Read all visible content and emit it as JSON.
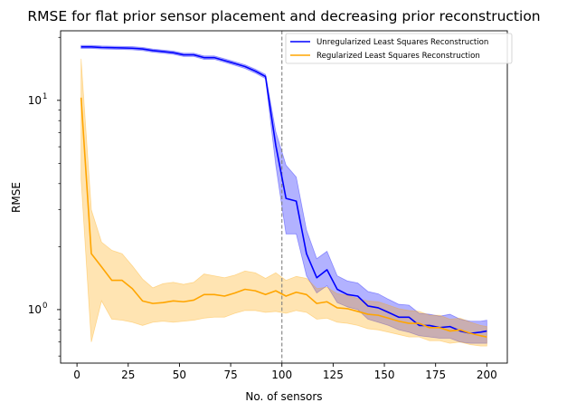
{
  "chart_data": {
    "type": "line",
    "title": "RMSE for flat prior sensor placement and decreasing prior reconstruction",
    "xlabel": "No. of sensors",
    "ylabel": "RMSE",
    "xlim": [
      -8,
      210
    ],
    "ylim": [
      0.555,
      21.5
    ],
    "yscale": "log",
    "grid": false,
    "legend_position": "top-right",
    "x_ticks": [
      0,
      25,
      50,
      75,
      100,
      125,
      150,
      175,
      200
    ],
    "y_major_ticks": [
      {
        "value": 1,
        "base": "10",
        "exp": "0"
      },
      {
        "value": 10,
        "base": "10",
        "exp": "1"
      }
    ],
    "y_minor_ticks": [
      0.6,
      0.7,
      0.8,
      0.9,
      2,
      3,
      4,
      5,
      6,
      7,
      8,
      9,
      20
    ],
    "vline": {
      "x": 100,
      "color": "#808080",
      "style": "dashed"
    },
    "series": [
      {
        "name": "Unregularized Least Squares Reconstruction",
        "color": "#0000ff",
        "band_color": "#0000ff",
        "x": [
          2,
          7,
          12,
          17,
          22,
          27,
          32,
          37,
          42,
          47,
          52,
          57,
          62,
          67,
          72,
          77,
          82,
          87,
          92,
          97,
          102,
          107,
          112,
          117,
          122,
          127,
          132,
          137,
          142,
          147,
          152,
          157,
          162,
          167,
          172,
          177,
          182,
          187,
          192,
          197,
          200
        ],
        "y": [
          18.0,
          18.0,
          17.9,
          17.85,
          17.8,
          17.75,
          17.6,
          17.3,
          17.1,
          16.9,
          16.5,
          16.5,
          16.0,
          16.0,
          15.5,
          15.0,
          14.5,
          13.8,
          13.0,
          6.1,
          3.4,
          3.3,
          1.85,
          1.42,
          1.55,
          1.25,
          1.18,
          1.16,
          1.04,
          1.02,
          0.97,
          0.92,
          0.92,
          0.84,
          0.84,
          0.82,
          0.83,
          0.79,
          0.77,
          0.78,
          0.79
        ],
        "lower": [
          17.7,
          17.7,
          17.6,
          17.55,
          17.5,
          17.45,
          17.3,
          17.0,
          16.8,
          16.6,
          16.2,
          16.2,
          15.7,
          15.7,
          15.2,
          14.7,
          14.2,
          13.5,
          12.7,
          4.9,
          2.3,
          2.3,
          1.45,
          1.2,
          1.3,
          1.08,
          1.03,
          1.0,
          0.9,
          0.87,
          0.84,
          0.8,
          0.78,
          0.75,
          0.74,
          0.73,
          0.73,
          0.7,
          0.69,
          0.69,
          0.69
        ],
        "upper": [
          18.3,
          18.3,
          18.2,
          18.15,
          18.1,
          18.05,
          17.9,
          17.6,
          17.4,
          17.2,
          16.8,
          16.8,
          16.3,
          16.3,
          15.8,
          15.3,
          14.8,
          14.1,
          13.3,
          7.1,
          4.9,
          4.3,
          2.4,
          1.75,
          1.9,
          1.45,
          1.37,
          1.34,
          1.22,
          1.19,
          1.12,
          1.06,
          1.05,
          0.96,
          0.95,
          0.93,
          0.95,
          0.9,
          0.88,
          0.88,
          0.89
        ]
      },
      {
        "name": "Regularized Least Squares Reconstruction",
        "color": "#ffa500",
        "band_color": "#ffa500",
        "x": [
          2,
          7,
          12,
          17,
          22,
          27,
          32,
          37,
          42,
          47,
          52,
          57,
          62,
          67,
          72,
          77,
          82,
          87,
          92,
          97,
          102,
          107,
          112,
          117,
          122,
          127,
          132,
          137,
          142,
          147,
          152,
          157,
          162,
          167,
          172,
          177,
          182,
          187,
          192,
          197,
          200
        ],
        "y": [
          10.3,
          1.85,
          1.6,
          1.38,
          1.38,
          1.26,
          1.1,
          1.07,
          1.08,
          1.1,
          1.09,
          1.11,
          1.18,
          1.18,
          1.16,
          1.2,
          1.25,
          1.23,
          1.18,
          1.23,
          1.16,
          1.21,
          1.18,
          1.07,
          1.09,
          1.02,
          1.01,
          0.98,
          0.95,
          0.94,
          0.91,
          0.88,
          0.86,
          0.86,
          0.82,
          0.82,
          0.79,
          0.8,
          0.77,
          0.75,
          0.74
        ],
        "lower": [
          4.2,
          0.7,
          1.1,
          0.9,
          0.89,
          0.87,
          0.84,
          0.87,
          0.88,
          0.87,
          0.88,
          0.89,
          0.91,
          0.92,
          0.92,
          0.96,
          0.99,
          0.99,
          0.97,
          0.98,
          0.96,
          0.99,
          0.97,
          0.9,
          0.91,
          0.87,
          0.86,
          0.84,
          0.81,
          0.8,
          0.78,
          0.76,
          0.74,
          0.74,
          0.71,
          0.71,
          0.69,
          0.7,
          0.68,
          0.67,
          0.67
        ],
        "upper": [
          15.8,
          3.0,
          2.1,
          1.92,
          1.85,
          1.62,
          1.4,
          1.27,
          1.33,
          1.35,
          1.32,
          1.35,
          1.48,
          1.45,
          1.42,
          1.46,
          1.53,
          1.5,
          1.41,
          1.5,
          1.38,
          1.44,
          1.41,
          1.26,
          1.28,
          1.19,
          1.17,
          1.13,
          1.1,
          1.09,
          1.05,
          1.01,
          0.99,
          0.98,
          0.94,
          0.94,
          0.9,
          0.91,
          0.87,
          0.84,
          0.83
        ]
      }
    ]
  }
}
